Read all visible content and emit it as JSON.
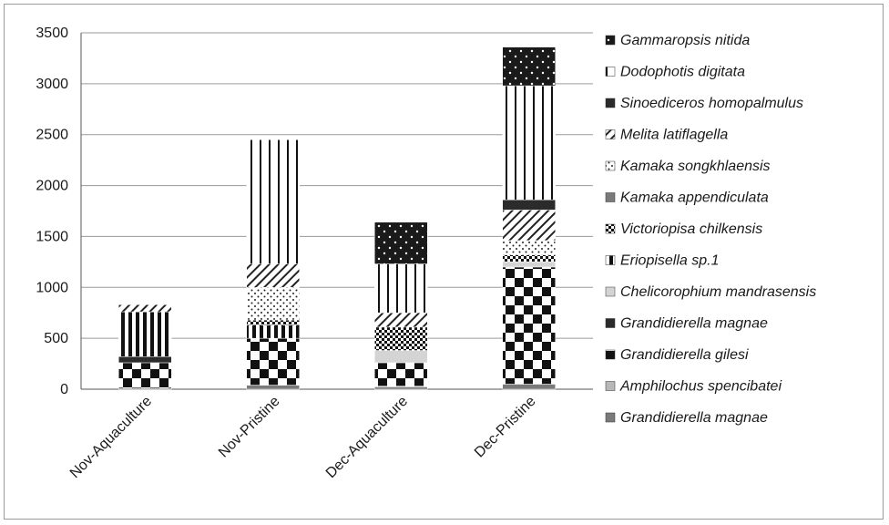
{
  "chart_data": {
    "type": "bar",
    "stacked": true,
    "categories": [
      "Nov-Aquaculture",
      "Nov-Pristine",
      "Dec-Aquaculture",
      "Dec-Pristine"
    ],
    "ylim": [
      0,
      3500
    ],
    "yticks": [
      0,
      500,
      1000,
      1500,
      2000,
      2500,
      3000,
      3500
    ],
    "grid": true,
    "legend_position": "right",
    "series": [
      {
        "name": "Grandidierella magnae",
        "pattern": "solid-gray",
        "values": [
          10,
          40,
          20,
          50
        ]
      },
      {
        "name": "Amphilochus spencibatei",
        "pattern": "solid-lightgray",
        "values": [
          0,
          0,
          10,
          0
        ]
      },
      {
        "name": "Grandidierella gilesi",
        "pattern": "checker",
        "values": [
          250,
          460,
          230,
          1150
        ]
      },
      {
        "name": "Grandidierella magnae",
        "pattern": "solid-dark",
        "values": [
          60,
          0,
          0,
          0
        ]
      },
      {
        "name": "Chelicorophium mandrasensis",
        "pattern": "solid-pale",
        "values": [
          0,
          0,
          120,
          50
        ]
      },
      {
        "name": "Eriopisella sp.1",
        "pattern": "vertical-bars",
        "values": [
          440,
          130,
          0,
          0
        ]
      },
      {
        "name": "Victoriopisa chilkensis",
        "pattern": "small-checker",
        "values": [
          0,
          50,
          230,
          70
        ]
      },
      {
        "name": "Kamaka appendiculata",
        "pattern": "solid-gray",
        "values": [
          0,
          0,
          0,
          0
        ]
      },
      {
        "name": "Kamaka songkhlaensis",
        "pattern": "dots",
        "values": [
          0,
          320,
          0,
          140
        ]
      },
      {
        "name": "Melita latiflagella",
        "pattern": "diagonal",
        "values": [
          70,
          230,
          140,
          300
        ]
      },
      {
        "name": "Sinoediceros homopalmulus",
        "pattern": "solid-dark",
        "values": [
          0,
          0,
          0,
          100
        ]
      },
      {
        "name": "Dodophotis digitata",
        "pattern": "vertical-lines",
        "values": [
          0,
          1220,
          480,
          1120
        ]
      },
      {
        "name": "Gammaropsis nitida",
        "pattern": "stars",
        "values": [
          0,
          0,
          410,
          380
        ]
      }
    ]
  },
  "legend_order": [
    12,
    11,
    10,
    9,
    8,
    7,
    6,
    5,
    4,
    3,
    2,
    1,
    0
  ]
}
